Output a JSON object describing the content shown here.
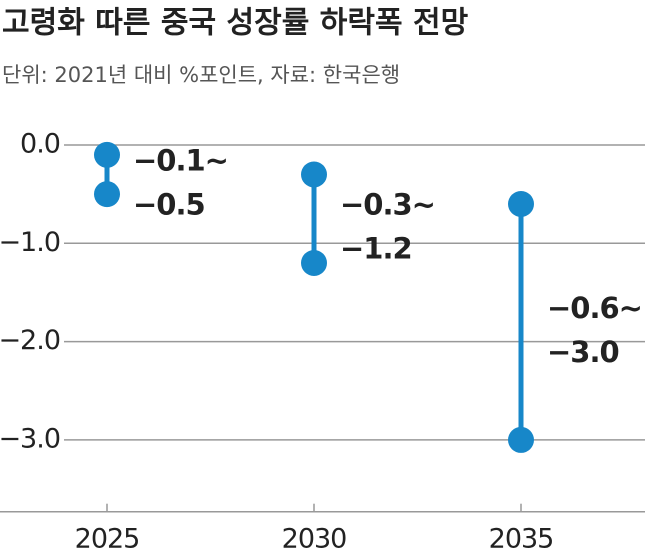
{
  "chart_data": {
    "type": "range",
    "title": "고령화 따른 중국 성장률 하락폭 전망",
    "subtitle": "단위: 2021년 대비 %포인트, 자료: 한국은행",
    "categories": [
      "2025",
      "2030",
      "2035"
    ],
    "series": [
      {
        "color": "#1787c9",
        "values": [
          -0.1,
          -0.3,
          -0.6
        ],
        "value_labels": [
          "−0.1~",
          "−0.3~",
          "−0.6~"
        ]
      },
      {
        "color": "#1787c9",
        "values": [
          -0.5,
          -1.2,
          -3.0
        ],
        "value_labels": [
          "−0.5",
          "−1.2",
          "−3.0"
        ]
      }
    ],
    "ylim": [
      -3.73,
      0.3
    ],
    "yticks": [
      {
        "value": 0,
        "label": "0.0"
      },
      {
        "value": -1,
        "label": "−1.0"
      },
      {
        "value": -2,
        "label": "−2.0"
      },
      {
        "value": -3,
        "label": "−3.0"
      }
    ],
    "grid": true
  }
}
